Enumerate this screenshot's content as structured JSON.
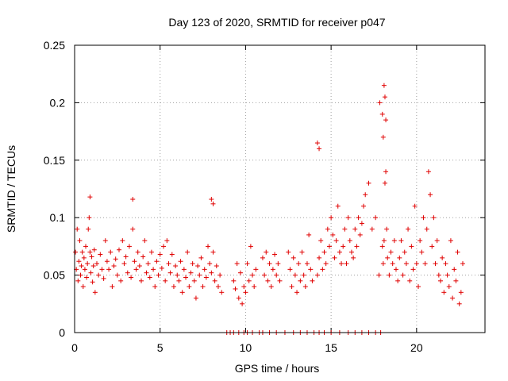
{
  "chart_data": {
    "type": "scatter",
    "title": "Day 123 of 2020, SRMTID for receiver p047",
    "xlabel": "GPS time / hours",
    "ylabel": "SRMTID / TECUs",
    "xlim": [
      0,
      24
    ],
    "ylim": [
      0,
      0.25
    ],
    "x_ticks": [
      0,
      5,
      10,
      15,
      20
    ],
    "x_tick_labels": [
      "0",
      "5",
      "10",
      "15",
      "20"
    ],
    "y_ticks": [
      0,
      0.05,
      0.1,
      0.15,
      0.2,
      0.25
    ],
    "y_tick_labels": [
      "0",
      "0.05",
      "0.1",
      "0.15",
      "0.2",
      "0.25"
    ],
    "grid": true,
    "marker": "plus",
    "color": "#e00000",
    "series": [
      {
        "name": "SRMTID",
        "x": [
          0.05,
          0.1,
          0.15,
          0.2,
          0.25,
          0.3,
          0.35,
          0.4,
          0.45,
          0.5,
          0.55,
          0.6,
          0.65,
          0.7,
          0.75,
          0.8,
          0.85,
          0.9,
          0.95,
          1.0,
          1.05,
          1.1,
          1.15,
          1.2,
          1.3,
          1.4,
          1.5,
          1.6,
          1.7,
          1.8,
          1.9,
          2.0,
          2.1,
          2.2,
          2.3,
          2.4,
          2.5,
          2.6,
          2.7,
          2.8,
          2.9,
          3.0,
          3.1,
          3.2,
          3.3,
          3.4,
          3.5,
          3.6,
          3.7,
          3.8,
          3.9,
          4.0,
          4.1,
          4.2,
          4.3,
          4.4,
          4.5,
          4.6,
          4.7,
          4.8,
          4.9,
          5.0,
          5.1,
          5.2,
          5.3,
          5.4,
          5.5,
          5.6,
          5.7,
          5.8,
          5.9,
          6.0,
          6.1,
          6.2,
          6.3,
          6.4,
          6.5,
          6.6,
          6.7,
          6.8,
          6.9,
          7.0,
          7.1,
          7.2,
          7.3,
          7.4,
          7.5,
          7.6,
          7.7,
          7.8,
          7.9,
          8.0,
          8.1,
          8.2,
          8.3,
          8.4,
          8.5,
          8.6,
          9.3,
          9.4,
          9.5,
          9.6,
          9.7,
          9.8,
          9.9,
          10.0,
          10.1,
          10.2,
          10.3,
          10.4,
          10.5,
          10.6,
          11.0,
          11.1,
          11.2,
          11.3,
          11.4,
          11.5,
          11.6,
          11.7,
          11.8,
          11.9,
          12.0,
          12.5,
          12.6,
          12.7,
          12.8,
          12.9,
          13.0,
          13.1,
          13.2,
          13.3,
          13.4,
          13.5,
          13.6,
          13.7,
          13.8,
          13.9,
          14.2,
          14.3,
          14.4,
          14.5,
          14.6,
          14.7,
          14.8,
          14.9,
          15.0,
          15.1,
          15.2,
          15.3,
          15.4,
          15.5,
          15.6,
          15.7,
          15.8,
          15.9,
          16.0,
          16.1,
          16.2,
          16.3,
          16.4,
          16.5,
          16.6,
          16.7,
          16.8,
          16.9,
          17.0,
          17.2,
          17.4,
          17.6,
          17.8,
          18.0,
          18.05,
          18.1,
          18.15,
          18.2,
          18.25,
          18.3,
          18.4,
          18.5,
          18.6,
          18.7,
          18.8,
          18.9,
          19.0,
          19.1,
          19.2,
          19.3,
          19.4,
          19.5,
          19.6,
          19.7,
          19.8,
          19.9,
          20.0,
          20.1,
          20.2,
          20.3,
          20.4,
          20.5,
          20.6,
          20.7,
          20.8,
          20.9,
          21.0,
          21.1,
          21.2,
          21.3,
          21.4,
          21.5,
          21.6,
          21.7,
          21.8,
          21.9,
          22.0,
          22.1,
          22.2,
          22.3,
          22.4,
          22.5,
          22.6,
          22.7,
          8.9,
          9.1,
          9.3,
          9.6,
          9.9,
          10.1,
          10.4,
          10.8,
          11.0,
          11.4,
          11.8,
          12.3,
          12.8,
          13.2,
          13.6,
          14.0,
          14.3,
          14.6,
          15.0,
          15.5,
          16.0,
          16.4,
          16.8,
          17.2,
          17.6,
          17.9,
          14.2,
          14.3,
          17.85,
          18.0,
          18.05,
          18.1,
          18.15,
          18.2,
          0.9,
          3.4,
          8.0,
          8.1
        ],
        "y": [
          0.07,
          0.055,
          0.09,
          0.045,
          0.062,
          0.08,
          0.05,
          0.058,
          0.07,
          0.04,
          0.065,
          0.055,
          0.075,
          0.048,
          0.06,
          0.09,
          0.1,
          0.07,
          0.052,
          0.066,
          0.044,
          0.058,
          0.072,
          0.035,
          0.06,
          0.05,
          0.068,
          0.055,
          0.047,
          0.08,
          0.062,
          0.055,
          0.07,
          0.04,
          0.058,
          0.064,
          0.05,
          0.072,
          0.045,
          0.08,
          0.06,
          0.066,
          0.052,
          0.075,
          0.048,
          0.09,
          0.062,
          0.055,
          0.07,
          0.058,
          0.045,
          0.066,
          0.08,
          0.052,
          0.06,
          0.048,
          0.07,
          0.055,
          0.04,
          0.062,
          0.05,
          0.068,
          0.056,
          0.075,
          0.045,
          0.08,
          0.06,
          0.052,
          0.068,
          0.04,
          0.058,
          0.05,
          0.045,
          0.062,
          0.035,
          0.055,
          0.048,
          0.07,
          0.04,
          0.052,
          0.06,
          0.045,
          0.03,
          0.058,
          0.05,
          0.065,
          0.04,
          0.055,
          0.048,
          0.075,
          0.06,
          0.052,
          0.07,
          0.045,
          0.058,
          0.04,
          0.05,
          0.035,
          0.045,
          0.038,
          0.06,
          0.03,
          0.052,
          0.025,
          0.04,
          0.035,
          0.06,
          0.045,
          0.075,
          0.05,
          0.04,
          0.055,
          0.065,
          0.05,
          0.07,
          0.045,
          0.06,
          0.04,
          0.055,
          0.068,
          0.05,
          0.06,
          0.045,
          0.07,
          0.055,
          0.04,
          0.065,
          0.05,
          0.035,
          0.06,
          0.045,
          0.07,
          0.05,
          0.04,
          0.06,
          0.085,
          0.055,
          0.045,
          0.05,
          0.065,
          0.08,
          0.055,
          0.07,
          0.06,
          0.09,
          0.075,
          0.1,
          0.085,
          0.065,
          0.08,
          0.11,
          0.07,
          0.06,
          0.075,
          0.09,
          0.06,
          0.1,
          0.08,
          0.07,
          0.065,
          0.09,
          0.075,
          0.1,
          0.085,
          0.095,
          0.11,
          0.12,
          0.13,
          0.09,
          0.1,
          0.05,
          0.075,
          0.06,
          0.08,
          0.13,
          0.14,
          0.09,
          0.065,
          0.05,
          0.07,
          0.06,
          0.08,
          0.055,
          0.045,
          0.065,
          0.08,
          0.05,
          0.07,
          0.06,
          0.09,
          0.045,
          0.075,
          0.055,
          0.11,
          0.06,
          0.04,
          0.08,
          0.07,
          0.1,
          0.06,
          0.09,
          0.14,
          0.12,
          0.075,
          0.1,
          0.06,
          0.08,
          0.05,
          0.045,
          0.065,
          0.035,
          0.06,
          0.05,
          0.04,
          0.08,
          0.03,
          0.055,
          0.045,
          0.07,
          0.025,
          0.035,
          0.06,
          0,
          0,
          0,
          0,
          0,
          0,
          0,
          0,
          0,
          0,
          0,
          0,
          0,
          0,
          0,
          0,
          0,
          0,
          0,
          0,
          0,
          0,
          0,
          0,
          0,
          0,
          0.165,
          0.16,
          0.2,
          0.19,
          0.17,
          0.215,
          0.205,
          0.185,
          0.118,
          0.116,
          0.116,
          0.112
        ]
      }
    ]
  }
}
